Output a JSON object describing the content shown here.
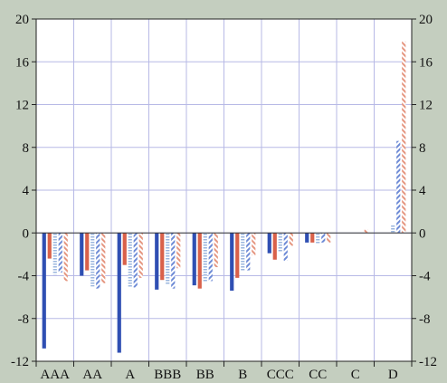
{
  "chart_data": {
    "type": "bar",
    "title": "",
    "xlabel": "",
    "ylabel": "",
    "categories": [
      "AAA",
      "AA",
      "A",
      "BBB",
      "BB",
      "B",
      "CCC",
      "CC",
      "C",
      "D"
    ],
    "ylim": [
      -12,
      20
    ],
    "yticks": [
      -12,
      -8,
      -4,
      0,
      4,
      8,
      12,
      16,
      20
    ],
    "grid": true,
    "legend": "none",
    "series": [
      {
        "color": "#2f4fb3",
        "pattern": "solid",
        "values": [
          -10.8,
          -4.0,
          -11.2,
          -5.3,
          -4.9,
          -5.4,
          -1.9,
          -0.9,
          0.0,
          0.0
        ]
      },
      {
        "color": "#d9614a",
        "pattern": "solid",
        "values": [
          -2.4,
          -3.5,
          -3.0,
          -4.4,
          -5.2,
          -4.2,
          -2.5,
          -0.9,
          0.0,
          0.0
        ]
      },
      {
        "color": "#9bb6de",
        "pattern": "horizontal-lines",
        "values": [
          -3.9,
          -5.0,
          -5.1,
          -4.8,
          -4.6,
          -3.5,
          -1.8,
          -1.0,
          0.0,
          0.8
        ]
      },
      {
        "color": "#6e8bd6",
        "pattern": "diagonal-lines",
        "values": [
          -3.7,
          -5.2,
          -5.1,
          -5.2,
          -4.5,
          -3.5,
          -2.6,
          -0.9,
          0.0,
          8.6
        ]
      },
      {
        "color": "#e59680",
        "pattern": "diagonal-lines",
        "values": [
          -4.5,
          -4.7,
          -4.2,
          -3.3,
          -3.2,
          -2.1,
          -1.2,
          -0.9,
          0.3,
          17.9
        ]
      }
    ]
  }
}
